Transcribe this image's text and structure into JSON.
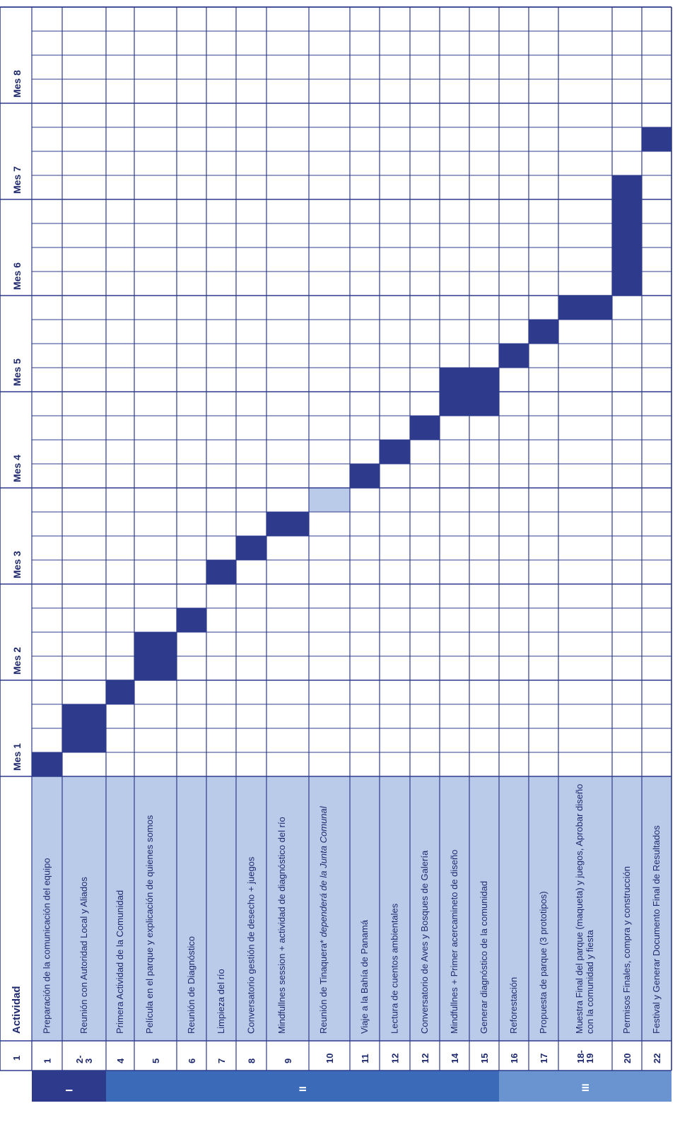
{
  "header": {
    "number": "1",
    "activity": "Actividad",
    "months": [
      "Mes 1",
      "Mes 2",
      "Mes 3",
      "Mes 4",
      "Mes 5",
      "Mes 6",
      "Mes 7",
      "Mes 8"
    ]
  },
  "phases": [
    {
      "label": "I",
      "color": "#2e3b8c"
    },
    {
      "label": "II",
      "color": "#3a6ab8"
    },
    {
      "label": "III",
      "color": "#6a94cf"
    }
  ],
  "colors": {
    "grid": "#2e3b8c",
    "activity_bg": "#b9cbe9",
    "active_week": "#2e3b8c",
    "tentative_week": "#b9cbe9",
    "text": "#1f2a6e"
  },
  "rows": [
    {
      "num": "1",
      "activity": "Preparación de la comunicación del equipo",
      "active_weeks": [
        1
      ],
      "tentative_weeks": []
    },
    {
      "num": "2-3",
      "activity": "Reunión con Autoridad Local y Aliados",
      "active_weeks": [
        2,
        3
      ],
      "tentative_weeks": []
    },
    {
      "num": "4",
      "activity": "Primera Actividad de la Comunidad",
      "active_weeks": [
        4
      ],
      "tentative_weeks": []
    },
    {
      "num": "5",
      "activity": "Película en el parque y explicación de quienes somos",
      "active_weeks": [
        5,
        6
      ],
      "tentative_weeks": []
    },
    {
      "num": "6",
      "activity": "Reunión de Diagnóstico",
      "active_weeks": [
        7
      ],
      "tentative_weeks": []
    },
    {
      "num": "7",
      "activity": "Limpieza del río",
      "active_weeks": [
        9
      ],
      "tentative_weeks": []
    },
    {
      "num": "8",
      "activity": "Conversatorio gestión de desecho + juegos",
      "active_weeks": [
        10
      ],
      "tentative_weeks": []
    },
    {
      "num": "9",
      "activity": "Mindfullnes session + actividad de diagnóstico del río",
      "active_weeks": [
        11
      ],
      "tentative_weeks": []
    },
    {
      "num": "10",
      "activity": "Reunión de Tinaquera*",
      "activity_italic": "dependerá de la Junta Comunal",
      "active_weeks": [],
      "tentative_weeks": [
        12
      ]
    },
    {
      "num": "11",
      "activity": "Viaje a la Bahía de Panamá",
      "active_weeks": [
        13
      ],
      "tentative_weeks": []
    },
    {
      "num": "12",
      "activity": "Lectura de cuentos ambientales",
      "active_weeks": [
        14
      ],
      "tentative_weeks": []
    },
    {
      "num": "12",
      "activity": "Conversatorio de Aves y Bosques de Galería",
      "active_weeks": [
        15
      ],
      "tentative_weeks": []
    },
    {
      "num": "14",
      "activity": "Mindfullnes + Primer acercamineto de diseño",
      "active_weeks": [
        16,
        17
      ],
      "tentative_weeks": []
    },
    {
      "num": "15",
      "activity": "Generar diagnóstico de la comunidad",
      "active_weeks": [
        16,
        17
      ],
      "tentative_weeks": []
    },
    {
      "num": "16",
      "activity": "Reforestación",
      "active_weeks": [
        18
      ],
      "tentative_weeks": []
    },
    {
      "num": "17",
      "activity": "Propuesta de parque (3 prototipos)",
      "active_weeks": [
        19
      ],
      "tentative_weeks": []
    },
    {
      "num": "18-19",
      "activity": "Muestra Final del parque (maqueta) y juegos, Aprobar diseño con la comunidad y fiesta",
      "active_weeks": [
        20
      ],
      "tentative_weeks": []
    },
    {
      "num": "20",
      "activity": "Permisos Finales, compra y construcción",
      "active_weeks": [
        21,
        22,
        23,
        24,
        25
      ],
      "tentative_weeks": []
    },
    {
      "num": "22",
      "activity": "Festival y Generar Documento Final de Resultados",
      "active_weeks": [
        27
      ],
      "tentative_weeks": []
    }
  ]
}
